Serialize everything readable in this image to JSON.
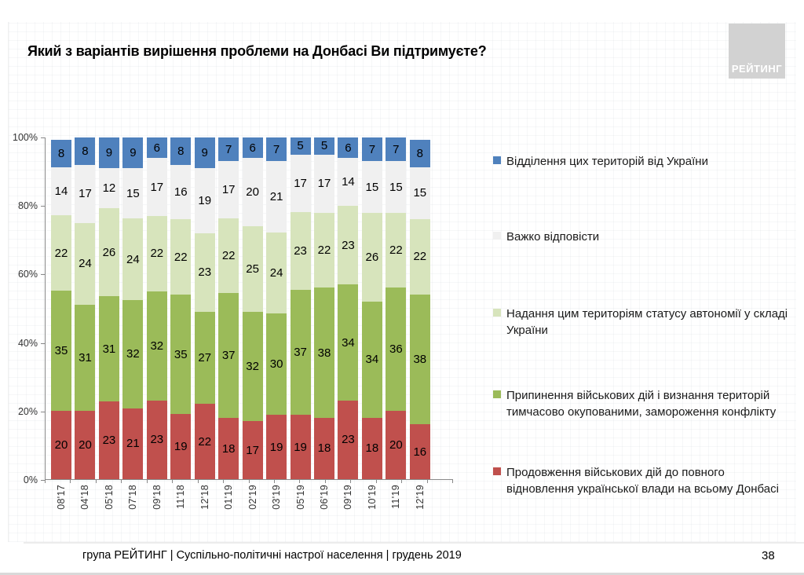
{
  "title": "Який з варіантів вирішення проблеми на Донбасі Ви підтримуєте?",
  "logo": {
    "text": "РЕЙТИНГ"
  },
  "chart_data": {
    "type": "bar",
    "stacked": true,
    "stacking": "percent",
    "title": "Який з варіантів вирішення проблеми на Донбасі Ви підтримуєте?",
    "categories": [
      "08'17",
      "04'18",
      "05'18",
      "07'18",
      "09'18",
      "11'18",
      "12'18",
      "01'19",
      "02'19",
      "03'19",
      "05'19",
      "06'19",
      "09'19",
      "10'19",
      "11'19",
      "12'19"
    ],
    "series": [
      {
        "name": "Продовження військових дій до повного відновлення української влади на всьому Донбасі",
        "color": "#C0504D",
        "values": [
          20,
          20,
          23,
          21,
          23,
          19,
          22,
          18,
          17,
          19,
          19,
          18,
          23,
          18,
          20,
          16
        ]
      },
      {
        "name": "Припинення військових дій і визнання територій тимчасово окупованими, замороження конфлікту",
        "color": "#9BBB59",
        "values": [
          35,
          31,
          31,
          32,
          32,
          35,
          27,
          37,
          32,
          30,
          37,
          38,
          34,
          34,
          36,
          38
        ]
      },
      {
        "name": "Надання цим територіям статусу автономії у складі України",
        "color": "#D7E4BC",
        "values": [
          22,
          24,
          26,
          24,
          22,
          22,
          23,
          22,
          25,
          24,
          23,
          22,
          23,
          26,
          22,
          22
        ]
      },
      {
        "name": "Важко відповісти",
        "color": "#F0F0F0",
        "values": [
          14,
          17,
          12,
          15,
          17,
          16,
          19,
          17,
          20,
          21,
          17,
          17,
          14,
          15,
          15,
          15
        ]
      },
      {
        "name": "Відділення цих територій від України",
        "color": "#4F81BD",
        "values": [
          8,
          8,
          9,
          9,
          6,
          8,
          9,
          7,
          6,
          7,
          5,
          5,
          6,
          7,
          7,
          8
        ]
      }
    ],
    "y_ticks": [
      "100%",
      "80%",
      "60%",
      "40%",
      "20%",
      "0%"
    ],
    "ylim": [
      0,
      100
    ],
    "grid": false,
    "legend_position": "right"
  },
  "legend": {
    "items": [
      {
        "color": "#4F81BD",
        "text": "Відділення цих територій від України"
      },
      {
        "color": "#F0F0F0",
        "text": "Важко відповісти"
      },
      {
        "color": "#D7E4BC",
        "text": "Надання цим територіям статусу автономії у складі\nУкраїни"
      },
      {
        "color": "#9BBB59",
        "text": "Припинення військових дій і визнання територій\nтимчасово окупованими, замороження конфлікту"
      },
      {
        "color": "#C0504D",
        "text": "Продовження військових дій до повного\nвідновлення української влади на всьому Донбасі"
      }
    ]
  },
  "footer": {
    "source_line": "група РЕЙТИНГ | Суспільно-політичні настрої населення  | грудень 2019",
    "page_number": "38"
  }
}
